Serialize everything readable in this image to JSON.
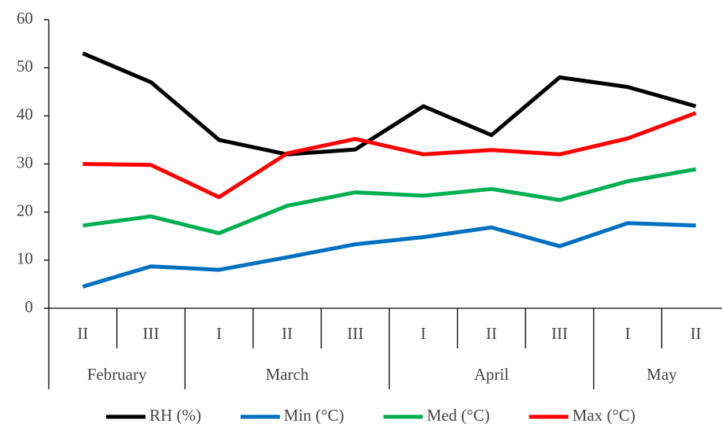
{
  "chart_data": {
    "type": "line",
    "groups": [
      {
        "label": "February",
        "categories": [
          "II",
          "III"
        ]
      },
      {
        "label": "March",
        "categories": [
          "I",
          "II",
          "III"
        ]
      },
      {
        "label": "April",
        "categories": [
          "I",
          "II",
          "III"
        ]
      },
      {
        "label": "May",
        "categories": [
          "I",
          "II"
        ]
      }
    ],
    "series": [
      {
        "name": "RH (%)",
        "color": "#000000",
        "values": [
          53,
          47,
          35,
          32,
          33,
          42,
          36,
          48,
          46,
          42
        ]
      },
      {
        "name": "Min (°C)",
        "color": "#0070c0",
        "values": [
          4.5,
          8.7,
          8,
          10.6,
          13.3,
          14.8,
          16.8,
          12.9,
          17.7,
          17.2
        ]
      },
      {
        "name": "Med (°C)",
        "color": "#00b050",
        "values": [
          17.2,
          19.1,
          15.6,
          21.3,
          24.1,
          23.4,
          24.8,
          22.5,
          26.4,
          28.9
        ]
      },
      {
        "name": "Max (°C)",
        "color": "#ff0000",
        "values": [
          30,
          29.8,
          23.1,
          32.2,
          35.2,
          32,
          32.9,
          32,
          35.3,
          40.6
        ]
      }
    ],
    "ylim": [
      0,
      60
    ],
    "yticks": [
      0,
      10,
      20,
      30,
      40,
      50,
      60
    ],
    "legend": "bottom"
  }
}
